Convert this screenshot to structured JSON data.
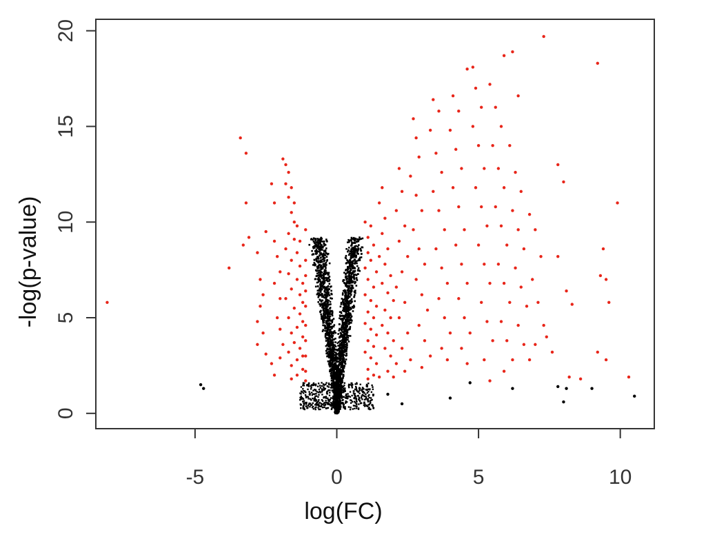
{
  "chart_data": {
    "type": "scatter",
    "title": "",
    "xlabel": "log(FC)",
    "ylabel": "-log(p-value)",
    "xlim": [
      -8.5,
      11.2
    ],
    "ylim": [
      -0.8,
      20.6
    ],
    "x_ticks": [
      -5,
      0,
      5,
      10
    ],
    "y_ticks": [
      0,
      5,
      10,
      15,
      20
    ],
    "x_tick_labels": [
      "-5",
      "0",
      "5",
      "10"
    ],
    "y_tick_labels": [
      "0",
      "5",
      "10",
      "15",
      "20"
    ],
    "grid": false,
    "legend": "none",
    "colors": {
      "significant": "#e8261a",
      "not_significant": "#000000"
    },
    "series": [
      {
        "color": "#e8261a",
        "points": [
          [
            -8.1,
            5.8
          ],
          [
            -3.8,
            7.6
          ],
          [
            -3.4,
            14.4
          ],
          [
            -3.2,
            13.6
          ],
          [
            -3.2,
            11.0
          ],
          [
            -3.1,
            9.2
          ],
          [
            -3.3,
            8.8
          ],
          [
            -2.8,
            8.4
          ],
          [
            -2.7,
            7.0
          ],
          [
            -2.6,
            6.2
          ],
          [
            -2.7,
            5.6
          ],
          [
            -2.8,
            4.8
          ],
          [
            -2.6,
            4.2
          ],
          [
            -2.8,
            3.6
          ],
          [
            -2.5,
            3.1
          ],
          [
            -2.3,
            2.6
          ],
          [
            -2.2,
            2.0
          ],
          [
            -2.3,
            12.0
          ],
          [
            -2.2,
            11.0
          ],
          [
            -2.5,
            9.5
          ],
          [
            -2.2,
            9.0
          ],
          [
            -2.1,
            8.2
          ],
          [
            -2.0,
            7.4
          ],
          [
            -2.2,
            6.8
          ],
          [
            -2.0,
            6.0
          ],
          [
            -2.1,
            5.0
          ],
          [
            -2.0,
            4.4
          ],
          [
            -1.9,
            3.6
          ],
          [
            -2.0,
            2.9
          ],
          [
            -1.9,
            13.3
          ],
          [
            -1.8,
            13.0
          ],
          [
            -1.7,
            12.6
          ],
          [
            -1.8,
            12.0
          ],
          [
            -1.6,
            11.8
          ],
          [
            -1.7,
            11.3
          ],
          [
            -1.5,
            11.0
          ],
          [
            -1.6,
            10.5
          ],
          [
            -1.5,
            10.0
          ],
          [
            -1.4,
            9.8
          ],
          [
            -1.7,
            9.4
          ],
          [
            -1.5,
            9.1
          ],
          [
            -1.3,
            9.0
          ],
          [
            -1.8,
            8.6
          ],
          [
            -1.4,
            8.4
          ],
          [
            -1.6,
            8.0
          ],
          [
            -1.3,
            7.7
          ],
          [
            -1.7,
            7.3
          ],
          [
            -1.4,
            7.0
          ],
          [
            -1.2,
            6.8
          ],
          [
            -1.6,
            6.5
          ],
          [
            -1.3,
            6.2
          ],
          [
            -1.8,
            6.0
          ],
          [
            -1.2,
            5.8
          ],
          [
            -1.5,
            5.5
          ],
          [
            -1.3,
            5.2
          ],
          [
            -1.7,
            5.0
          ],
          [
            -1.2,
            4.8
          ],
          [
            -1.4,
            4.5
          ],
          [
            -1.6,
            4.2
          ],
          [
            -1.2,
            4.0
          ],
          [
            -1.5,
            3.7
          ],
          [
            -1.3,
            3.4
          ],
          [
            -1.7,
            3.2
          ],
          [
            -1.2,
            3.0
          ],
          [
            -1.4,
            2.8
          ],
          [
            -1.6,
            2.5
          ],
          [
            -1.2,
            2.3
          ],
          [
            -1.4,
            2.0
          ],
          [
            -1.6,
            1.8
          ],
          [
            -1.1,
            9.6
          ],
          [
            -1.1,
            8.0
          ],
          [
            -1.1,
            7.2
          ],
          [
            -1.1,
            6.4
          ],
          [
            -1.1,
            5.6
          ],
          [
            -1.1,
            4.6
          ],
          [
            -1.1,
            3.8
          ],
          [
            -1.1,
            3.0
          ],
          [
            -1.1,
            2.2
          ],
          [
            -1.1,
            1.7
          ],
          [
            1.0,
            10.0
          ],
          [
            1.2,
            9.8
          ],
          [
            1.1,
            9.2
          ],
          [
            1.3,
            8.8
          ],
          [
            1.1,
            8.4
          ],
          [
            1.2,
            8.0
          ],
          [
            1.0,
            7.6
          ],
          [
            1.4,
            7.4
          ],
          [
            1.1,
            7.0
          ],
          [
            1.3,
            6.6
          ],
          [
            1.0,
            6.2
          ],
          [
            1.2,
            5.9
          ],
          [
            1.4,
            5.6
          ],
          [
            1.1,
            5.3
          ],
          [
            1.3,
            5.0
          ],
          [
            1.0,
            4.7
          ],
          [
            1.2,
            4.4
          ],
          [
            1.4,
            4.1
          ],
          [
            1.1,
            3.8
          ],
          [
            1.3,
            3.5
          ],
          [
            1.0,
            3.2
          ],
          [
            1.2,
            2.9
          ],
          [
            1.4,
            2.6
          ],
          [
            1.1,
            2.3
          ],
          [
            1.3,
            2.0
          ],
          [
            1.1,
            1.8
          ],
          [
            1.5,
            1.9
          ],
          [
            1.6,
            11.8
          ],
          [
            1.5,
            11.0
          ],
          [
            1.7,
            10.2
          ],
          [
            1.6,
            9.4
          ],
          [
            1.8,
            8.6
          ],
          [
            1.5,
            8.2
          ],
          [
            1.7,
            7.8
          ],
          [
            1.9,
            7.2
          ],
          [
            1.6,
            6.8
          ],
          [
            1.8,
            6.3
          ],
          [
            2.0,
            5.9
          ],
          [
            1.7,
            5.4
          ],
          [
            1.9,
            5.0
          ],
          [
            1.6,
            4.6
          ],
          [
            1.8,
            4.2
          ],
          [
            2.0,
            3.8
          ],
          [
            1.7,
            3.4
          ],
          [
            1.9,
            3.0
          ],
          [
            2.1,
            2.6
          ],
          [
            1.8,
            2.2
          ],
          [
            2.0,
            1.9
          ],
          [
            2.2,
            12.8
          ],
          [
            2.3,
            11.6
          ],
          [
            2.1,
            10.6
          ],
          [
            2.4,
            9.8
          ],
          [
            2.2,
            9.0
          ],
          [
            2.5,
            8.2
          ],
          [
            2.3,
            7.4
          ],
          [
            2.1,
            6.6
          ],
          [
            2.4,
            5.8
          ],
          [
            2.2,
            5.0
          ],
          [
            2.5,
            4.2
          ],
          [
            2.3,
            3.4
          ],
          [
            2.6,
            2.8
          ],
          [
            2.4,
            2.2
          ],
          [
            2.7,
            15.4
          ],
          [
            2.8,
            14.4
          ],
          [
            2.9,
            13.4
          ],
          [
            2.6,
            12.4
          ],
          [
            2.8,
            11.4
          ],
          [
            3.0,
            10.6
          ],
          [
            2.7,
            9.6
          ],
          [
            2.9,
            8.6
          ],
          [
            3.1,
            7.8
          ],
          [
            2.8,
            7.0
          ],
          [
            3.0,
            6.2
          ],
          [
            3.2,
            5.4
          ],
          [
            2.9,
            4.6
          ],
          [
            3.1,
            3.8
          ],
          [
            3.3,
            3.0
          ],
          [
            3.0,
            2.4
          ],
          [
            3.4,
            16.4
          ],
          [
            3.6,
            15.8
          ],
          [
            3.3,
            14.8
          ],
          [
            3.5,
            13.6
          ],
          [
            3.7,
            12.6
          ],
          [
            3.4,
            11.6
          ],
          [
            3.6,
            10.6
          ],
          [
            3.8,
            9.6
          ],
          [
            3.5,
            8.6
          ],
          [
            3.7,
            7.6
          ],
          [
            3.9,
            6.8
          ],
          [
            3.6,
            6.0
          ],
          [
            3.8,
            5.0
          ],
          [
            4.0,
            4.2
          ],
          [
            3.7,
            3.4
          ],
          [
            3.9,
            2.8
          ],
          [
            4.1,
            16.6
          ],
          [
            4.3,
            15.8
          ],
          [
            4.0,
            14.8
          ],
          [
            4.2,
            13.8
          ],
          [
            4.4,
            12.8
          ],
          [
            4.1,
            11.8
          ],
          [
            4.3,
            10.8
          ],
          [
            4.5,
            9.6
          ],
          [
            4.2,
            8.8
          ],
          [
            4.4,
            7.8
          ],
          [
            4.6,
            6.8
          ],
          [
            4.3,
            6.0
          ],
          [
            4.5,
            5.0
          ],
          [
            4.7,
            4.2
          ],
          [
            4.4,
            3.4
          ],
          [
            4.6,
            2.6
          ],
          [
            4.6,
            18.0
          ],
          [
            4.8,
            18.1
          ],
          [
            4.9,
            17.0
          ],
          [
            5.1,
            16.0
          ],
          [
            4.8,
            15.0
          ],
          [
            5.0,
            14.0
          ],
          [
            5.2,
            12.8
          ],
          [
            4.9,
            11.8
          ],
          [
            5.1,
            10.8
          ],
          [
            5.3,
            9.8
          ],
          [
            5.0,
            8.8
          ],
          [
            5.2,
            7.8
          ],
          [
            5.4,
            6.8
          ],
          [
            5.1,
            5.8
          ],
          [
            5.3,
            4.8
          ],
          [
            5.5,
            3.8
          ],
          [
            5.2,
            2.8
          ],
          [
            5.4,
            1.7
          ],
          [
            5.4,
            17.2
          ],
          [
            5.6,
            16.0
          ],
          [
            5.8,
            15.0
          ],
          [
            5.5,
            14.0
          ],
          [
            5.7,
            12.8
          ],
          [
            5.9,
            11.8
          ],
          [
            5.6,
            10.8
          ],
          [
            5.8,
            9.8
          ],
          [
            6.0,
            8.8
          ],
          [
            5.7,
            7.8
          ],
          [
            5.9,
            6.8
          ],
          [
            6.1,
            5.8
          ],
          [
            5.8,
            4.8
          ],
          [
            6.0,
            3.8
          ],
          [
            6.2,
            2.8
          ],
          [
            5.9,
            2.2
          ],
          [
            6.2,
            18.9
          ],
          [
            5.9,
            18.7
          ],
          [
            6.4,
            16.6
          ],
          [
            6.1,
            14.0
          ],
          [
            6.3,
            12.6
          ],
          [
            6.5,
            11.6
          ],
          [
            6.2,
            10.6
          ],
          [
            6.4,
            9.6
          ],
          [
            6.6,
            8.6
          ],
          [
            6.3,
            7.6
          ],
          [
            6.5,
            6.6
          ],
          [
            6.7,
            5.6
          ],
          [
            6.4,
            4.6
          ],
          [
            6.6,
            3.6
          ],
          [
            6.8,
            2.8
          ],
          [
            7.3,
            19.7
          ],
          [
            6.8,
            10.4
          ],
          [
            7.0,
            9.6
          ],
          [
            7.2,
            8.2
          ],
          [
            6.9,
            7.0
          ],
          [
            7.1,
            5.8
          ],
          [
            7.3,
            4.6
          ],
          [
            7.0,
            3.6
          ],
          [
            7.4,
            4.0
          ],
          [
            7.6,
            3.2
          ],
          [
            7.8,
            13.0
          ],
          [
            8.0,
            12.1
          ],
          [
            7.8,
            8.2
          ],
          [
            8.1,
            6.4
          ],
          [
            8.3,
            5.7
          ],
          [
            8.2,
            1.9
          ],
          [
            8.6,
            1.8
          ],
          [
            9.2,
            18.3
          ],
          [
            9.4,
            8.6
          ],
          [
            9.3,
            7.2
          ],
          [
            9.5,
            7.0
          ],
          [
            9.6,
            5.8
          ],
          [
            9.2,
            3.2
          ],
          [
            9.5,
            2.8
          ],
          [
            9.9,
            11.0
          ],
          [
            10.3,
            1.9
          ]
        ]
      },
      {
        "color": "#000000",
        "points": [
          [
            -4.8,
            1.5
          ],
          [
            -4.7,
            1.3
          ],
          [
            1.8,
            1.0
          ],
          [
            2.3,
            0.5
          ],
          [
            4.0,
            0.8
          ],
          [
            4.7,
            1.6
          ],
          [
            6.2,
            1.3
          ],
          [
            7.8,
            1.4
          ],
          [
            8.0,
            0.6
          ],
          [
            8.1,
            1.3
          ],
          [
            9.0,
            1.3
          ],
          [
            10.5,
            0.9
          ]
        ]
      }
    ]
  }
}
